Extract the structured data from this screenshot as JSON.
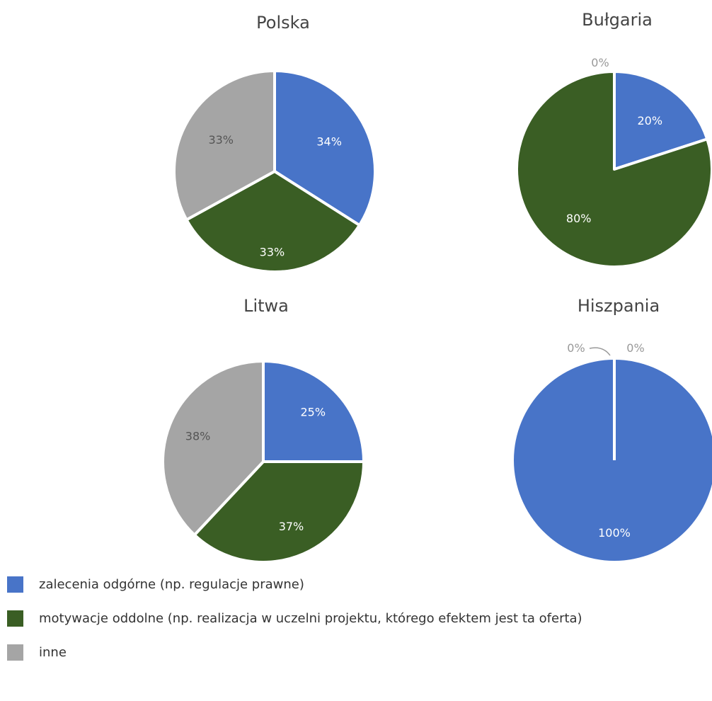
{
  "colors": {
    "zalecenia": "#4874c8",
    "motywacje": "#3a5e24",
    "inne": "#a5a5a5"
  },
  "legend": [
    {
      "key": "zalecenia",
      "label": "zalecenia odgórne (np. regulacje prawne)",
      "color": "#4874c8"
    },
    {
      "key": "motywacje",
      "label": "motywacje oddolne (np. realizacja w uczelni projektu, którego efektem jest ta oferta)",
      "color": "#3a5e24"
    },
    {
      "key": "inne",
      "label": "inne",
      "color": "#a5a5a5"
    }
  ],
  "chart_data": [
    {
      "type": "pie",
      "title": "Polska",
      "categories": [
        "zalecenia odgórne",
        "motywacje oddolne",
        "inne"
      ],
      "values": [
        34,
        33,
        33
      ],
      "labels": [
        "34%",
        "33%",
        "33%"
      ]
    },
    {
      "type": "pie",
      "title": "Bułgaria",
      "categories": [
        "zalecenia odgórne",
        "motywacje oddolne",
        "inne"
      ],
      "values": [
        20,
        80,
        0
      ],
      "labels": [
        "20%",
        "80%",
        "0%"
      ]
    },
    {
      "type": "pie",
      "title": "Litwa",
      "categories": [
        "zalecenia odgórne",
        "motywacje oddolne",
        "inne"
      ],
      "values": [
        25,
        37,
        38
      ],
      "labels": [
        "25%",
        "37%",
        "38%"
      ]
    },
    {
      "type": "pie",
      "title": "Hiszpania",
      "categories": [
        "zalecenia odgórne",
        "motywacje oddolne",
        "inne"
      ],
      "values": [
        100,
        0,
        0
      ],
      "labels": [
        "100%",
        "0%",
        "0%"
      ]
    }
  ]
}
